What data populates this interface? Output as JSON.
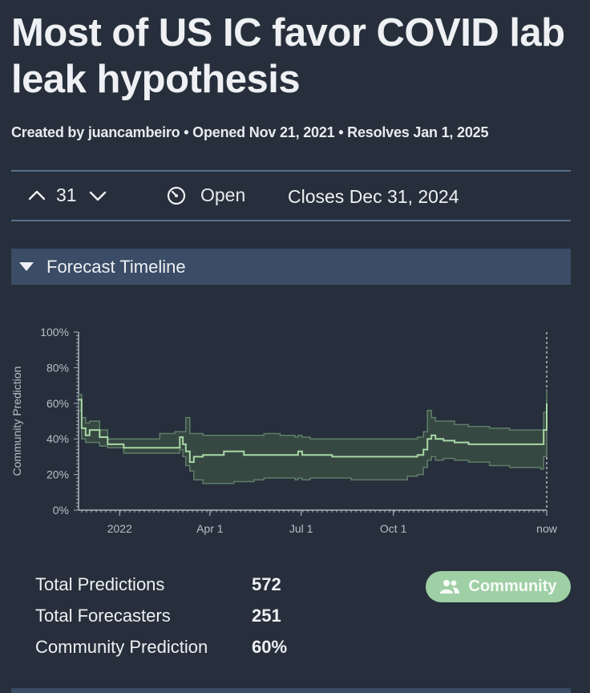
{
  "page": {
    "title": "Most of US IC favor COVID lab leak hypothesis",
    "meta": "Created by juancambeiro • Opened Nov 21, 2021 • Resolves Jan 1, 2025"
  },
  "toolbar": {
    "vote_count": "31",
    "status": "Open",
    "closes": "Closes Dec 31, 2024",
    "icons": {
      "upvote": "chevron-up-icon",
      "downvote": "chevron-down-icon",
      "status": "clock-icon"
    }
  },
  "section": {
    "title": "Forecast Timeline",
    "icon": "triangle-down-icon"
  },
  "stats": [
    {
      "label": "Total Predictions",
      "value": "572"
    },
    {
      "label": "Total Forecasters",
      "value": "251"
    },
    {
      "label": "Community Prediction",
      "value": "60%"
    }
  ],
  "community_button": {
    "label": "Community",
    "icon": "users-icon"
  },
  "colors": {
    "background": "#262f3b",
    "header_bar": "#3a4c66",
    "median_line": "#a8d8a4",
    "band_fill": "#3d5147",
    "band_line": "#5f7d68",
    "community_button": "#9fcfa5"
  },
  "chart_data": {
    "type": "area",
    "ylabel": "Community Prediction",
    "yticks": [
      "0%",
      "20%",
      "40%",
      "60%",
      "80%",
      "100%"
    ],
    "xticks": [
      "2022",
      "Apr 1",
      "Jul 1",
      "Oct 1",
      "now"
    ],
    "ylim": [
      0,
      100
    ],
    "x": [
      "2021-11-21",
      "2021-11-24",
      "2021-11-28",
      "2021-12-02",
      "2021-12-07",
      "2021-12-12",
      "2021-12-20",
      "2022-01-05",
      "2022-01-25",
      "2022-02-10",
      "2022-02-25",
      "2022-03-02",
      "2022-03-05",
      "2022-03-08",
      "2022-03-12",
      "2022-03-16",
      "2022-03-18",
      "2022-03-20",
      "2022-03-25",
      "2022-04-15",
      "2022-04-25",
      "2022-05-05",
      "2022-05-15",
      "2022-05-25",
      "2022-06-10",
      "2022-06-25",
      "2022-06-28",
      "2022-07-02",
      "2022-07-10",
      "2022-08-01",
      "2022-08-20",
      "2022-09-10",
      "2022-10-01",
      "2022-10-15",
      "2022-10-25",
      "2022-10-31",
      "2022-11-04",
      "2022-11-08",
      "2022-11-12",
      "2022-11-20",
      "2022-12-01",
      "2022-12-15",
      "2023-01-05",
      "2023-01-25",
      "2023-02-20",
      "2023-02-25",
      "2023-02-28",
      "2023-03-03"
    ],
    "series": [
      {
        "values": [
          62,
          46,
          42,
          45,
          45,
          41,
          37,
          35,
          35,
          35,
          35,
          41,
          37,
          33,
          27,
          30,
          30,
          30,
          31,
          33,
          33,
          31,
          31,
          31,
          31,
          31,
          33,
          31,
          31,
          30,
          30,
          30,
          30,
          30,
          31,
          34,
          40,
          42,
          40,
          39,
          38,
          37,
          37,
          37,
          37,
          37,
          45,
          60
        ]
      },
      {
        "values": [
          65,
          52,
          49,
          50,
          50,
          45,
          40,
          40,
          40,
          43,
          44,
          44,
          44,
          52,
          43,
          43,
          43,
          43,
          42,
          42,
          42,
          42,
          42,
          43,
          42,
          41,
          42,
          41,
          40,
          40,
          40,
          40,
          40,
          40,
          41,
          44,
          56,
          52,
          50,
          50,
          48,
          47,
          46,
          45,
          45,
          45,
          55,
          68
        ]
      },
      {
        "values": [
          56,
          40,
          38,
          38,
          38,
          36,
          35,
          32,
          32,
          32,
          32,
          34,
          30,
          25,
          22,
          17,
          17,
          17,
          15,
          15,
          16,
          16,
          17,
          18,
          18,
          17,
          18,
          17,
          18,
          18,
          17,
          17,
          17,
          19,
          20,
          24,
          28,
          30,
          28,
          29,
          28,
          27,
          25,
          24,
          24,
          23,
          30,
          45
        ]
      }
    ]
  }
}
